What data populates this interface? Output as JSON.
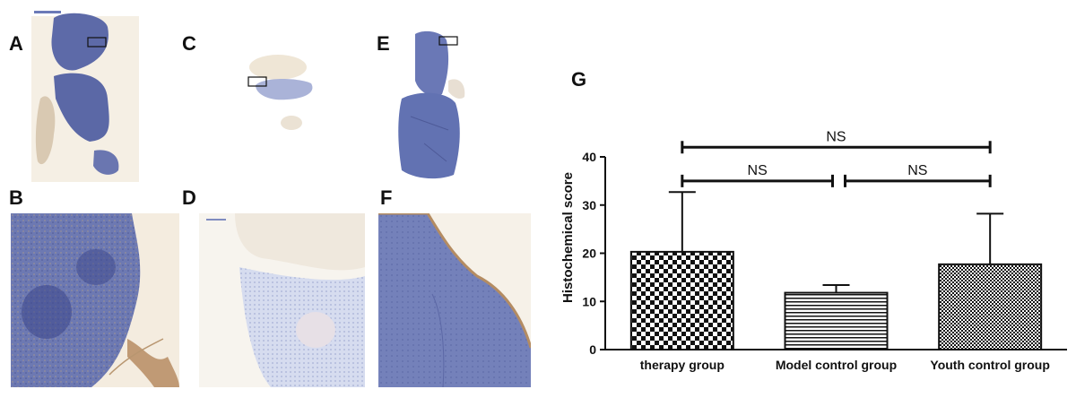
{
  "panels": {
    "A": "A",
    "B": "B",
    "C": "C",
    "D": "D",
    "E": "E",
    "F": "F",
    "G": "G"
  },
  "colors": {
    "tissue_blue": "#5d6aa8",
    "tissue_light": "#aab3d8",
    "tissue_brown": "#b89670",
    "background_cream": "#f3ece0"
  },
  "chart_data": {
    "type": "bar",
    "title": "",
    "xlabel": "",
    "ylabel": "Histochemical score",
    "ylim": [
      0,
      40
    ],
    "yticks": [
      0,
      10,
      20,
      30,
      40
    ],
    "categories": [
      "therapy group",
      "Model control group",
      "Youth control group"
    ],
    "values": [
      20.3,
      11.8,
      17.7
    ],
    "error_upper": [
      32.7,
      13.4,
      28.2
    ],
    "patterns": [
      "checker",
      "horizontal-lines",
      "fine-checker"
    ],
    "significance": [
      {
        "label": "NS",
        "from": 0,
        "to": 2,
        "y": 42
      },
      {
        "label": "NS",
        "from": 0,
        "to": 1,
        "y": 35
      },
      {
        "label": "NS",
        "from": 1,
        "to": 2,
        "y": 35
      }
    ]
  }
}
